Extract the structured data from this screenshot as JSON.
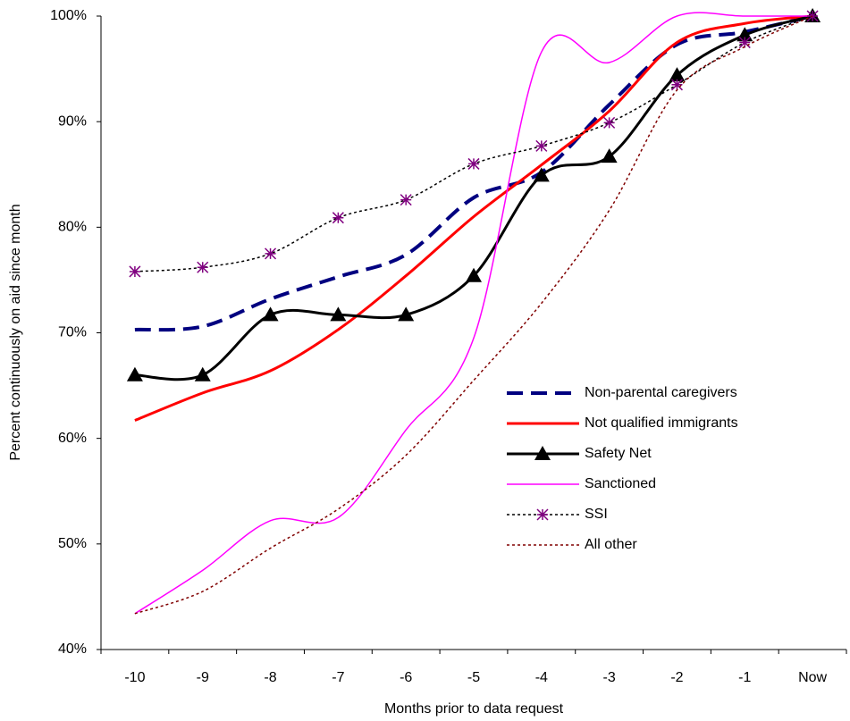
{
  "chart_data": {
    "type": "line",
    "x_label": "Months prior to data request",
    "y_label": "Percent continuously on aid since month",
    "categories": [
      "-10",
      "-9",
      "-8",
      "-7",
      "-6",
      "-5",
      "-4",
      "-3",
      "-2",
      "-1",
      "Now"
    ],
    "ylim": [
      40,
      100
    ],
    "yticks": [
      {
        "value": 40,
        "label": "40%"
      },
      {
        "value": 50,
        "label": "50%"
      },
      {
        "value": 60,
        "label": "60%"
      },
      {
        "value": 70,
        "label": "70%"
      },
      {
        "value": 80,
        "label": "80%"
      },
      {
        "value": 90,
        "label": "90%"
      },
      {
        "value": 100,
        "label": "100%"
      }
    ],
    "smooth": true,
    "series": [
      {
        "name": "Non-parental caregivers",
        "color": "#000080",
        "width": 4,
        "dash": "18 9",
        "marker": null,
        "values": [
          70.3,
          70.6,
          73.2,
          75.3,
          77.4,
          82.8,
          85.2,
          91.6,
          97.3,
          98.5,
          100
        ]
      },
      {
        "name": "Not qualified immigrants",
        "color": "#ff0000",
        "width": 3,
        "dash": null,
        "marker": null,
        "values": [
          61.7,
          64.3,
          66.4,
          70.3,
          75.4,
          81,
          85.9,
          91,
          97.5,
          99.3,
          100
        ]
      },
      {
        "name": "Safety Net",
        "color": "#000000",
        "width": 3,
        "dash": null,
        "marker": "triangle",
        "values": [
          66,
          66,
          71.7,
          71.7,
          71.7,
          75.4,
          84.9,
          86.7,
          94.4,
          98.2,
          100
        ]
      },
      {
        "name": "Sanctioned",
        "color": "#ff00ff",
        "width": 1.5,
        "dash": null,
        "marker": null,
        "values": [
          43.4,
          47.5,
          52.2,
          52.5,
          60.8,
          69.5,
          96.6,
          95.6,
          100,
          100,
          100
        ]
      },
      {
        "name": "SSI",
        "color": "#000000",
        "width": 1.5,
        "dash": "3 3",
        "marker": "asterisk",
        "marker_color": "#800080",
        "values": [
          75.8,
          76.2,
          77.5,
          80.9,
          82.6,
          86,
          87.7,
          89.9,
          93.5,
          97.5,
          100
        ]
      },
      {
        "name": "All other",
        "color": "#800000",
        "width": 1.5,
        "dash": "3 3",
        "marker": null,
        "values": [
          43.4,
          45.5,
          49.6,
          53.3,
          58.4,
          65.5,
          72.8,
          81.6,
          93,
          97.1,
          100
        ]
      }
    ]
  }
}
